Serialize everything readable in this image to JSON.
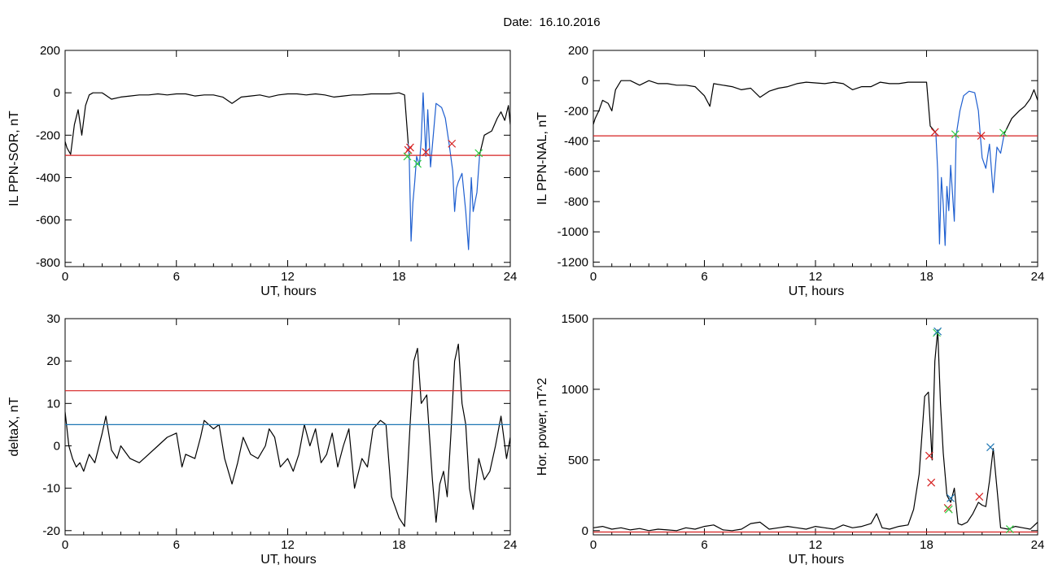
{
  "page": {
    "title": "Date:  16.10.2016"
  },
  "colors": {
    "trace": "#000000",
    "threshold": "#d62020",
    "threshold_low": "#1f77b4",
    "marker_red": "#d62020",
    "marker_green": "#2ecc40",
    "marker_blue": "#1f77b4",
    "segment": "#1f5fd0"
  },
  "chart_data": [
    {
      "id": "ppn-sor",
      "type": "line",
      "xlabel": "UT, hours",
      "ylabel": "IL PPN-SOR, nT",
      "xlim": [
        0,
        24
      ],
      "ylim": [
        -820,
        200
      ],
      "xticks": [
        0,
        6,
        12,
        18,
        24
      ],
      "yticks": [
        200,
        0,
        -200,
        -400,
        -600,
        -800
      ],
      "ytick_labels": [
        "200",
        "0",
        "-200",
        "-400",
        "-600",
        "-800"
      ],
      "thresholds": [
        {
          "y": -295,
          "color": "#d62020"
        }
      ],
      "series": [
        {
          "color": "#000000",
          "x": [
            0,
            0.1,
            0.3,
            0.5,
            0.7,
            0.9,
            1.1,
            1.3,
            1.5,
            2,
            2.5,
            3,
            3.5,
            4,
            4.5,
            5,
            5.5,
            6,
            6.5,
            7,
            7.5,
            8,
            8.5,
            9,
            9.5,
            10,
            10.5,
            11,
            11.5,
            12,
            12.5,
            13,
            13.5,
            14,
            14.5,
            15,
            15.5,
            16,
            16.5,
            17,
            17.5,
            18,
            18.3,
            18.5
          ],
          "y": [
            -230,
            -260,
            -290,
            -150,
            -80,
            -200,
            -60,
            -10,
            0,
            0,
            -30,
            -20,
            -15,
            -10,
            -10,
            -5,
            -10,
            -5,
            -5,
            -15,
            -10,
            -10,
            -20,
            -50,
            -20,
            -15,
            -10,
            -20,
            -10,
            -5,
            -5,
            -10,
            -5,
            -10,
            -20,
            -15,
            -10,
            -10,
            -5,
            -5,
            -5,
            0,
            -10,
            -240
          ]
        },
        {
          "color": "#1f5fd0",
          "x": [
            18.5,
            18.55,
            18.65,
            18.75,
            18.85,
            18.95,
            19.1,
            19.2,
            19.3,
            19.45,
            19.55,
            19.7,
            20,
            20.3,
            20.5,
            20.7,
            20.9,
            21,
            21.1,
            21.2,
            21.4,
            21.6,
            21.75,
            21.9,
            22,
            22.2,
            22.35
          ],
          "y": [
            -240,
            -300,
            -700,
            -520,
            -420,
            -300,
            -340,
            -220,
            0,
            -300,
            -80,
            -350,
            -50,
            -70,
            -120,
            -240,
            -370,
            -560,
            -450,
            -420,
            -380,
            -560,
            -740,
            -400,
            -560,
            -470,
            -290
          ]
        },
        {
          "color": "#000000",
          "x": [
            22.35,
            22.6,
            23,
            23.3,
            23.5,
            23.7,
            23.9,
            24
          ],
          "y": [
            -290,
            -200,
            -180,
            -120,
            -90,
            -130,
            -60,
            -150
          ]
        }
      ],
      "markers": [
        {
          "x": 18.5,
          "y": -270,
          "color": "#d62020"
        },
        {
          "x": 18.6,
          "y": -258,
          "color": "#d62020"
        },
        {
          "x": 18.45,
          "y": -300,
          "color": "#2ecc40"
        },
        {
          "x": 19.0,
          "y": -335,
          "color": "#2ecc40"
        },
        {
          "x": 19.45,
          "y": -280,
          "color": "#d62020"
        },
        {
          "x": 20.85,
          "y": -240,
          "color": "#d62020"
        },
        {
          "x": 22.3,
          "y": -285,
          "color": "#2ecc40"
        }
      ]
    },
    {
      "id": "ppn-nal",
      "type": "line",
      "xlabel": "UT, hours",
      "ylabel": "IL PPN-NAL, nT",
      "xlim": [
        0,
        24
      ],
      "ylim": [
        -1230,
        200
      ],
      "xticks": [
        0,
        6,
        12,
        18,
        24
      ],
      "yticks": [
        200,
        0,
        -200,
        -400,
        -600,
        -800,
        -1000,
        -1200
      ],
      "ytick_labels": [
        "200",
        "0",
        "-200",
        "-400",
        "-600",
        "-800",
        "-1000",
        "-1200"
      ],
      "thresholds": [
        {
          "y": -365,
          "color": "#d62020"
        }
      ],
      "series": [
        {
          "color": "#000000",
          "x": [
            0,
            0.1,
            0.3,
            0.5,
            0.8,
            1,
            1.2,
            1.5,
            2,
            2.5,
            3,
            3.5,
            4,
            4.5,
            5,
            5.5,
            6,
            6.3,
            6.5,
            7,
            7.5,
            8,
            8.5,
            9,
            9.5,
            10,
            10.5,
            11,
            11.5,
            12,
            12.5,
            13,
            13.5,
            14,
            14.5,
            15,
            15.5,
            16,
            16.5,
            17,
            17.5,
            18,
            18.2,
            18.5
          ],
          "y": [
            -290,
            -250,
            -200,
            -130,
            -150,
            -200,
            -60,
            0,
            0,
            -30,
            0,
            -20,
            -20,
            -30,
            -30,
            -40,
            -100,
            -170,
            -20,
            -30,
            -40,
            -60,
            -50,
            -110,
            -70,
            -50,
            -40,
            -20,
            -10,
            -15,
            -20,
            -10,
            -20,
            -60,
            -40,
            -40,
            -10,
            -20,
            -20,
            -10,
            -10,
            -10,
            -300,
            -345
          ]
        },
        {
          "color": "#1f5fd0",
          "x": [
            18.5,
            18.6,
            18.7,
            18.8,
            18.9,
            19,
            19.1,
            19.2,
            19.3,
            19.5,
            19.6,
            19.8,
            20,
            20.3,
            20.6,
            20.8,
            20.9,
            21,
            21.2,
            21.4,
            21.6,
            21.8,
            22,
            22.2
          ],
          "y": [
            -345,
            -600,
            -1080,
            -640,
            -820,
            -1090,
            -700,
            -860,
            -560,
            -930,
            -360,
            -200,
            -100,
            -70,
            -80,
            -200,
            -360,
            -510,
            -580,
            -420,
            -740,
            -440,
            -480,
            -350
          ]
        },
        {
          "color": "#000000",
          "x": [
            22.2,
            22.6,
            23,
            23.3,
            23.6,
            23.8,
            24
          ],
          "y": [
            -350,
            -250,
            -200,
            -170,
            -120,
            -60,
            -130
          ]
        }
      ],
      "markers": [
        {
          "x": 18.45,
          "y": -340,
          "color": "#d62020"
        },
        {
          "x": 19.55,
          "y": -355,
          "color": "#2ecc40"
        },
        {
          "x": 20.95,
          "y": -365,
          "color": "#d62020"
        },
        {
          "x": 22.15,
          "y": -345,
          "color": "#2ecc40"
        }
      ]
    },
    {
      "id": "deltax",
      "type": "line",
      "xlabel": "UT, hours",
      "ylabel": "deltaX, nT",
      "xlim": [
        0,
        24
      ],
      "ylim": [
        -21,
        30
      ],
      "xticks": [
        0,
        6,
        12,
        18,
        24
      ],
      "yticks": [
        30,
        20,
        10,
        0,
        -10,
        -20
      ],
      "ytick_labels": [
        "30",
        "20",
        "10",
        "0",
        "-10",
        "-20"
      ],
      "thresholds": [
        {
          "y": 13,
          "color": "#d62020"
        },
        {
          "y": 5,
          "color": "#1f77b4"
        }
      ],
      "series": [
        {
          "color": "#000000",
          "x": [
            0,
            0.2,
            0.4,
            0.6,
            0.8,
            1,
            1.3,
            1.6,
            2,
            2.2,
            2.5,
            2.8,
            3,
            3.5,
            4,
            4.5,
            5,
            5.5,
            6,
            6.3,
            6.5,
            7,
            7.3,
            7.5,
            8,
            8.3,
            8.6,
            9,
            9.3,
            9.6,
            10,
            10.4,
            10.8,
            11,
            11.3,
            11.6,
            12,
            12.3,
            12.6,
            12.9,
            13.2,
            13.5,
            13.8,
            14.1,
            14.4,
            14.7,
            15,
            15.3,
            15.6,
            16,
            16.3,
            16.6,
            17,
            17.3,
            17.6,
            18,
            18.3,
            18.6,
            18.8,
            19,
            19.2,
            19.5,
            19.8,
            20,
            20.2,
            20.4,
            20.6,
            20.8,
            21,
            21.2,
            21.4,
            21.6,
            21.8,
            22,
            22.3,
            22.6,
            22.9,
            23.2,
            23.5,
            23.8,
            24
          ],
          "y": [
            8,
            0,
            -3,
            -5,
            -4,
            -6,
            -2,
            -4,
            3,
            7,
            -1,
            -3,
            0,
            -3,
            -4,
            -2,
            0,
            2,
            3,
            -5,
            -2,
            -3,
            2,
            6,
            4,
            5,
            -3,
            -9,
            -4,
            2,
            -2,
            -3,
            0,
            4,
            2,
            -5,
            -3,
            -6,
            -2,
            5,
            0,
            4,
            -4,
            -2,
            3,
            -5,
            0,
            4,
            -10,
            -3,
            -5,
            4,
            6,
            5,
            -12,
            -17,
            -19,
            5,
            20,
            23,
            10,
            12,
            -8,
            -18,
            -9,
            -6,
            -12,
            3,
            20,
            24,
            10,
            5,
            -10,
            -15,
            -3,
            -8,
            -6,
            0,
            7,
            -3,
            2
          ]
        }
      ],
      "markers": []
    },
    {
      "id": "hor-power",
      "type": "line",
      "xlabel": "UT, hours",
      "ylabel": "Hor. power, nT^2",
      "xlim": [
        0,
        24
      ],
      "ylim": [
        -30,
        1500
      ],
      "xticks": [
        0,
        6,
        12,
        18,
        24
      ],
      "yticks": [
        1500,
        1000,
        500,
        0
      ],
      "ytick_labels": [
        "1500",
        "1000",
        "500",
        "0"
      ],
      "thresholds": [
        {
          "y": -10,
          "color": "#d62020"
        }
      ],
      "series": [
        {
          "color": "#000000",
          "x": [
            0,
            0.5,
            1,
            1.5,
            2,
            2.5,
            3,
            3.5,
            4,
            4.5,
            5,
            5.5,
            6,
            6.5,
            7,
            7.5,
            8,
            8.5,
            9,
            9.5,
            10,
            10.5,
            11,
            11.5,
            12,
            12.5,
            13,
            13.5,
            14,
            14.5,
            15,
            15.3,
            15.6,
            16,
            16.5,
            17,
            17.3,
            17.6,
            17.9,
            18.1,
            18.3,
            18.45,
            18.6,
            18.75,
            18.9,
            19.1,
            19.3,
            19.5,
            19.7,
            19.9,
            20.2,
            20.5,
            20.8,
            21,
            21.2,
            21.4,
            21.6,
            21.8,
            22,
            22.4,
            22.8,
            23.2,
            23.6,
            24
          ],
          "y": [
            20,
            30,
            10,
            20,
            5,
            15,
            0,
            10,
            5,
            0,
            20,
            10,
            30,
            40,
            5,
            0,
            10,
            50,
            60,
            10,
            20,
            30,
            20,
            10,
            30,
            20,
            10,
            40,
            20,
            30,
            50,
            120,
            20,
            10,
            30,
            40,
            150,
            400,
            950,
            980,
            500,
            1200,
            1420,
            900,
            550,
            250,
            200,
            300,
            50,
            40,
            60,
            120,
            200,
            180,
            170,
            350,
            580,
            300,
            20,
            10,
            30,
            20,
            10,
            60
          ]
        }
      ],
      "markers": [
        {
          "x": 18.15,
          "y": 530,
          "color": "#d62020"
        },
        {
          "x": 18.25,
          "y": 340,
          "color": "#d62020"
        },
        {
          "x": 18.55,
          "y": 1400,
          "color": "#2ecc40"
        },
        {
          "x": 18.6,
          "y": 1410,
          "color": "#1f77b4"
        },
        {
          "x": 19.15,
          "y": 160,
          "color": "#d62020"
        },
        {
          "x": 19.2,
          "y": 150,
          "color": "#2ecc40"
        },
        {
          "x": 19.3,
          "y": 230,
          "color": "#1f77b4"
        },
        {
          "x": 20.85,
          "y": 240,
          "color": "#d62020"
        },
        {
          "x": 21.45,
          "y": 590,
          "color": "#1f77b4"
        },
        {
          "x": 22.5,
          "y": 10,
          "color": "#2ecc40"
        }
      ]
    }
  ]
}
